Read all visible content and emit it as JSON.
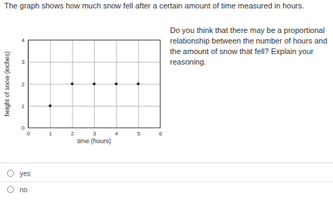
{
  "header": {
    "text": "The graph shows how much snow fell after a certain amount of time measured in hours."
  },
  "question": {
    "text": "Do you think that there may be a proportional relationship between the number of hours and the amount of snow that fell? Explain your reasoning."
  },
  "options": [
    "yes",
    "no"
  ],
  "chart_data": {
    "type": "scatter",
    "x_label": "time (hours)",
    "y_label": "height of snow (inches)",
    "x": [
      1,
      2,
      3,
      4,
      5
    ],
    "values": [
      1,
      2,
      2,
      2,
      2
    ],
    "color": "#222222",
    "marker": "circle",
    "xlim": [
      0,
      6
    ],
    "xticks": [
      0,
      1,
      2,
      3,
      4,
      5,
      6
    ],
    "ylim": [
      0,
      4
    ],
    "yticks": [
      0,
      1,
      2,
      3,
      4
    ],
    "grid": true
  }
}
